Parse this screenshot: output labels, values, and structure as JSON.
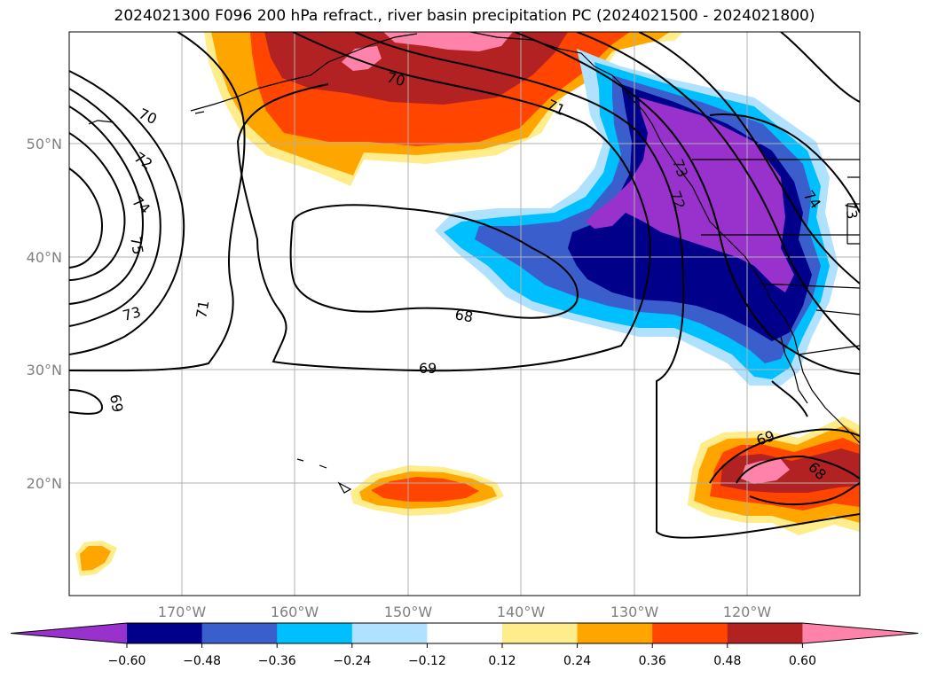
{
  "title": "2024021300 F096 200 hPa refract., river basin precipitation PC (2024021500 - 2024021800)",
  "map": {
    "lat_labels": [
      "50°N",
      "40°N",
      "30°N",
      "20°N"
    ],
    "lon_labels": [
      "170°W",
      "160°W",
      "150°W",
      "140°W",
      "130°W",
      "120°W"
    ],
    "grid": true
  },
  "contour_labels": [
    "70",
    "72",
    "74",
    "75",
    "73",
    "71",
    "70",
    "71",
    "68",
    "69",
    "69",
    "72",
    "73",
    "74",
    "73",
    "69",
    "68"
  ],
  "colorbar": {
    "tick_labels": [
      "−0.60",
      "−0.48",
      "−0.36",
      "−0.24",
      "−0.12",
      "0.12",
      "0.24",
      "0.36",
      "0.48",
      "0.60"
    ],
    "colors": [
      "#9932cc",
      "#00008b",
      "#3a5fcd",
      "#00bfff",
      "#b0e2ff",
      "#ffffff",
      "#ffec8b",
      "#ffa500",
      "#ff4500",
      "#b22222",
      "#ff82ab"
    ]
  }
}
